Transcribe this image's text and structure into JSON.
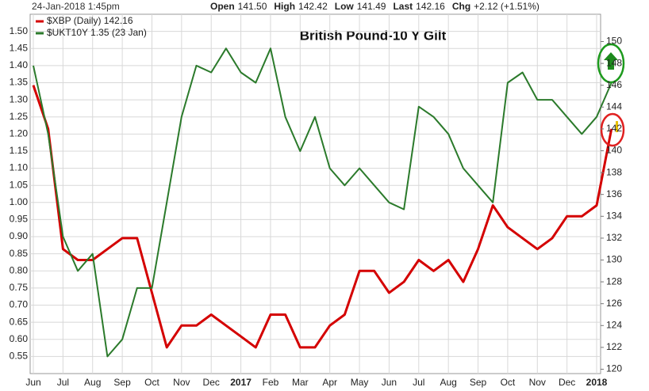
{
  "chart_data": {
    "type": "line",
    "header_date": "24-Jan-2018 1:45pm",
    "quote": [
      {
        "label": "Open",
        "value": "141.50"
      },
      {
        "label": "High",
        "value": "142.42"
      },
      {
        "label": "Low",
        "value": "141.49"
      },
      {
        "label": "Last",
        "value": "142.16"
      },
      {
        "label": "Chg",
        "value": "+2.12 (+1.51%)"
      }
    ],
    "title": "British Pound-10 Y Gilt",
    "categories": [
      "Jun",
      null,
      "Jul",
      null,
      "Aug",
      null,
      "Sep",
      null,
      "Oct",
      null,
      "Nov",
      null,
      "Dec",
      null,
      "2017",
      null,
      "Feb",
      null,
      "Mar",
      null,
      "Apr",
      null,
      "May",
      null,
      "Jun",
      null,
      "Jul",
      null,
      "Aug",
      null,
      "Sep",
      null,
      "Oct",
      null,
      "Nov",
      null,
      "Dec",
      null,
      "2018",
      null
    ],
    "series": [
      {
        "name": "$XBP (Daily) 142.16",
        "color": "#d40000",
        "axis": "y2",
        "values": [
          146,
          142,
          131,
          130,
          130,
          131,
          132,
          132,
          127,
          122,
          124,
          124,
          125,
          124,
          123,
          122,
          125,
          125,
          122,
          122,
          124,
          125,
          129,
          129,
          127,
          128,
          130,
          129,
          130,
          128,
          131,
          135,
          133,
          132,
          131,
          132,
          134,
          134,
          135,
          142
        ]
      },
      {
        "name": "$UKT10Y 1.35 (23 Jan)",
        "color": "#2b7a2b",
        "values": [
          1.4,
          1.2,
          0.9,
          0.8,
          0.85,
          0.55,
          0.6,
          0.75,
          0.75,
          1.0,
          1.25,
          1.4,
          1.38,
          1.45,
          1.38,
          1.35,
          1.45,
          1.25,
          1.15,
          1.25,
          1.1,
          1.05,
          1.1,
          1.05,
          1.0,
          0.98,
          1.28,
          1.25,
          1.2,
          1.1,
          1.05,
          1.0,
          1.35,
          1.38,
          1.3,
          1.3,
          1.25,
          1.2,
          1.25,
          1.35
        ]
      }
    ],
    "ylim": [
      0.5,
      1.55
    ],
    "yticks": [
      {
        "value": 0.55,
        "label": "0.55"
      },
      {
        "value": 0.6,
        "label": "0.60"
      },
      {
        "value": 0.65,
        "label": "0.65"
      },
      {
        "value": 0.7,
        "label": "0.70"
      },
      {
        "value": 0.75,
        "label": "0.75"
      },
      {
        "value": 0.8,
        "label": "0.80"
      },
      {
        "value": 0.85,
        "label": "0.85"
      },
      {
        "value": 0.9,
        "label": "0.90"
      },
      {
        "value": 0.95,
        "label": "0.95"
      },
      {
        "value": 1.0,
        "label": "1.00"
      },
      {
        "value": 1.05,
        "label": "1.05"
      },
      {
        "value": 1.1,
        "label": "1.10"
      },
      {
        "value": 1.15,
        "label": "1.15"
      },
      {
        "value": 1.2,
        "label": "1.20"
      },
      {
        "value": 1.25,
        "label": "1.25"
      },
      {
        "value": 1.3,
        "label": "1.30"
      },
      {
        "value": 1.35,
        "label": "1.35"
      },
      {
        "value": 1.4,
        "label": "1.40"
      },
      {
        "value": 1.45,
        "label": "1.45"
      },
      {
        "value": 1.5,
        "label": "1.50"
      }
    ],
    "y2lim": [
      119.6,
      152.5
    ],
    "y2ticks": [
      120,
      122,
      124,
      126,
      128,
      130,
      132,
      134,
      136,
      138,
      140,
      142,
      144,
      146,
      148,
      150
    ],
    "grid": true
  }
}
